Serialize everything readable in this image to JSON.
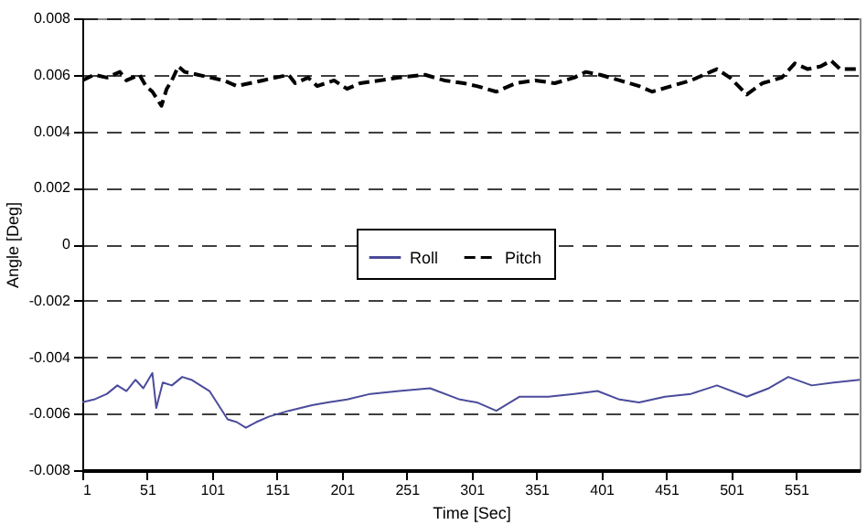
{
  "chart_data": {
    "type": "line",
    "xlabel": "Time [Sec]",
    "ylabel": "Angle [Deg]",
    "xlim": [
      1,
      600
    ],
    "xticks": [
      1,
      51,
      101,
      151,
      201,
      251,
      301,
      351,
      401,
      451,
      501,
      551
    ],
    "ylim": [
      -0.008,
      0.008
    ],
    "yticks": [
      -0.008,
      -0.006,
      -0.004,
      -0.002,
      0,
      0.002,
      0.004,
      0.006,
      0.008
    ],
    "grid": "y",
    "legend": "center",
    "marker": "none",
    "series": [
      {
        "name": "Roll",
        "color": "#4b4b9b",
        "line_style": "solid",
        "x": [
          1,
          10,
          20,
          28,
          35,
          42,
          48,
          55,
          58,
          63,
          70,
          78,
          85,
          92,
          99,
          106,
          113,
          120,
          127,
          135,
          145,
          160,
          178,
          190,
          205,
          223,
          245,
          269,
          292,
          305,
          320,
          338,
          360,
          380,
          398,
          415,
          430,
          450,
          470,
          490,
          513,
          530,
          545,
          563,
          580,
          600
        ],
        "values": [
          -0.0056,
          -0.0055,
          -0.0053,
          -0.005,
          -0.0052,
          -0.0048,
          -0.0051,
          -0.00456,
          -0.0058,
          -0.0049,
          -0.005,
          -0.0047,
          -0.0048,
          -0.005,
          -0.0052,
          -0.0057,
          -0.0062,
          -0.0063,
          -0.0065,
          -0.0063,
          -0.0061,
          -0.0059,
          -0.0057,
          -0.0056,
          -0.0055,
          -0.0053,
          -0.0052,
          -0.0051,
          -0.0055,
          -0.0056,
          -0.0059,
          -0.0054,
          -0.0054,
          -0.0053,
          -0.0052,
          -0.0055,
          -0.0056,
          -0.0054,
          -0.0053,
          -0.005,
          -0.0054,
          -0.0051,
          -0.0047,
          -0.005,
          -0.0049,
          -0.0048
        ]
      },
      {
        "name": "Pitch",
        "color": "#000000",
        "line_style": "dashed",
        "x": [
          1,
          10,
          20,
          30,
          35,
          45,
          50,
          55,
          62,
          66,
          70,
          75,
          80,
          90,
          100,
          110,
          120,
          130,
          140,
          150,
          160,
          165,
          175,
          182,
          195,
          205,
          215,
          230,
          245,
          265,
          280,
          295,
          305,
          320,
          335,
          350,
          365,
          380,
          389,
          400,
          415,
          430,
          440,
          455,
          470,
          485,
          490,
          500,
          513,
          525,
          540,
          550,
          560,
          570,
          578,
          585,
          600
        ],
        "values": [
          0.0058,
          0.006,
          0.0059,
          0.0061,
          0.0058,
          0.006,
          0.0056,
          0.0054,
          0.0049,
          0.0055,
          0.0058,
          0.0063,
          0.0061,
          0.006,
          0.0059,
          0.0058,
          0.0056,
          0.0057,
          0.0058,
          0.0059,
          0.006,
          0.0057,
          0.0059,
          0.0056,
          0.0058,
          0.0055,
          0.0057,
          0.0058,
          0.0059,
          0.006,
          0.0058,
          0.0057,
          0.0056,
          0.0054,
          0.0057,
          0.0058,
          0.0057,
          0.0059,
          0.0061,
          0.006,
          0.0058,
          0.0056,
          0.0054,
          0.0056,
          0.0058,
          0.0061,
          0.0062,
          0.0059,
          0.0053,
          0.0057,
          0.0059,
          0.0064,
          0.0062,
          0.0063,
          0.0065,
          0.0062,
          0.0062
        ]
      }
    ]
  }
}
